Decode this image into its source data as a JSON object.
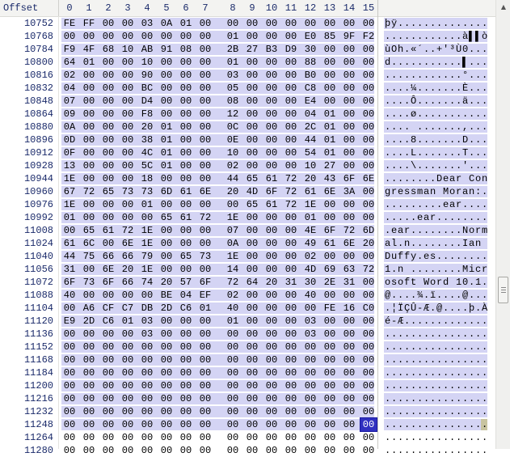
{
  "header": {
    "offset_label": "Offset",
    "columns": [
      "0",
      "1",
      "2",
      "3",
      "4",
      "5",
      "6",
      "7",
      "8",
      "9",
      "10",
      "11",
      "12",
      "13",
      "14",
      "15"
    ]
  },
  "rows": [
    {
      "offset": "10752",
      "hex": [
        "FE",
        "FF",
        "00",
        "00",
        "03",
        "0A",
        "01",
        "00",
        "00",
        "00",
        "00",
        "00",
        "00",
        "00",
        "00",
        "00"
      ],
      "ascii": "þÿ.............."
    },
    {
      "offset": "10768",
      "hex": [
        "00",
        "00",
        "00",
        "00",
        "00",
        "00",
        "00",
        "00",
        "01",
        "00",
        "00",
        "00",
        "E0",
        "85",
        "9F",
        "F2"
      ],
      "ascii": "............à▌▌ò"
    },
    {
      "offset": "10784",
      "hex": [
        "F9",
        "4F",
        "68",
        "10",
        "AB",
        "91",
        "08",
        "00",
        "2B",
        "27",
        "B3",
        "D9",
        "30",
        "00",
        "00",
        "00"
      ],
      "ascii": "ùOh.«´..+'³Ù0..."
    },
    {
      "offset": "10800",
      "hex": [
        "64",
        "01",
        "00",
        "00",
        "10",
        "00",
        "00",
        "00",
        "01",
        "00",
        "00",
        "00",
        "88",
        "00",
        "00",
        "00"
      ],
      "ascii": "d...........▌..."
    },
    {
      "offset": "10816",
      "hex": [
        "02",
        "00",
        "00",
        "00",
        "90",
        "00",
        "00",
        "00",
        "03",
        "00",
        "00",
        "00",
        "B0",
        "00",
        "00",
        "00"
      ],
      "ascii": "............°..."
    },
    {
      "offset": "10832",
      "hex": [
        "04",
        "00",
        "00",
        "00",
        "BC",
        "00",
        "00",
        "00",
        "05",
        "00",
        "00",
        "00",
        "C8",
        "00",
        "00",
        "00"
      ],
      "ascii": "....¼.......È..."
    },
    {
      "offset": "10848",
      "hex": [
        "07",
        "00",
        "00",
        "00",
        "D4",
        "00",
        "00",
        "00",
        "08",
        "00",
        "00",
        "00",
        "E4",
        "00",
        "00",
        "00"
      ],
      "ascii": "....Ô.......ä..."
    },
    {
      "offset": "10864",
      "hex": [
        "09",
        "00",
        "00",
        "00",
        "F8",
        "00",
        "00",
        "00",
        "12",
        "00",
        "00",
        "00",
        "04",
        "01",
        "00",
        "00"
      ],
      "ascii": "....ø..........."
    },
    {
      "offset": "10880",
      "hex": [
        "0A",
        "00",
        "00",
        "00",
        "20",
        "01",
        "00",
        "00",
        "0C",
        "00",
        "00",
        "00",
        "2C",
        "01",
        "00",
        "00"
      ],
      "ascii": ".... .......,..."
    },
    {
      "offset": "10896",
      "hex": [
        "0D",
        "00",
        "00",
        "00",
        "38",
        "01",
        "00",
        "00",
        "0E",
        "00",
        "00",
        "00",
        "44",
        "01",
        "00",
        "00"
      ],
      "ascii": "....8.......D..."
    },
    {
      "offset": "10912",
      "hex": [
        "0F",
        "00",
        "00",
        "00",
        "4C",
        "01",
        "00",
        "00",
        "10",
        "00",
        "00",
        "00",
        "54",
        "01",
        "00",
        "00"
      ],
      "ascii": "....L.......T..."
    },
    {
      "offset": "10928",
      "hex": [
        "13",
        "00",
        "00",
        "00",
        "5C",
        "01",
        "00",
        "00",
        "02",
        "00",
        "00",
        "00",
        "10",
        "27",
        "00",
        "00"
      ],
      "ascii": "....\\.......'..."
    },
    {
      "offset": "10944",
      "hex": [
        "1E",
        "00",
        "00",
        "00",
        "18",
        "00",
        "00",
        "00",
        "44",
        "65",
        "61",
        "72",
        "20",
        "43",
        "6F",
        "6E"
      ],
      "ascii": "........Dear Con"
    },
    {
      "offset": "10960",
      "hex": [
        "67",
        "72",
        "65",
        "73",
        "73",
        "6D",
        "61",
        "6E",
        "20",
        "4D",
        "6F",
        "72",
        "61",
        "6E",
        "3A",
        "00"
      ],
      "ascii": "gressman Moran:."
    },
    {
      "offset": "10976",
      "hex": [
        "1E",
        "00",
        "00",
        "00",
        "01",
        "00",
        "00",
        "00",
        "00",
        "65",
        "61",
        "72",
        "1E",
        "00",
        "00",
        "00"
      ],
      "ascii": ".........ear...."
    },
    {
      "offset": "10992",
      "hex": [
        "01",
        "00",
        "00",
        "00",
        "00",
        "65",
        "61",
        "72",
        "1E",
        "00",
        "00",
        "00",
        "01",
        "00",
        "00",
        "00"
      ],
      "ascii": ".....ear........"
    },
    {
      "offset": "11008",
      "hex": [
        "00",
        "65",
        "61",
        "72",
        "1E",
        "00",
        "00",
        "00",
        "07",
        "00",
        "00",
        "00",
        "4E",
        "6F",
        "72",
        "6D"
      ],
      "ascii": ".ear........Norm"
    },
    {
      "offset": "11024",
      "hex": [
        "61",
        "6C",
        "00",
        "6E",
        "1E",
        "00",
        "00",
        "00",
        "0A",
        "00",
        "00",
        "00",
        "49",
        "61",
        "6E",
        "20"
      ],
      "ascii": "al.n........Ian "
    },
    {
      "offset": "11040",
      "hex": [
        "44",
        "75",
        "66",
        "66",
        "79",
        "00",
        "65",
        "73",
        "1E",
        "00",
        "00",
        "00",
        "02",
        "00",
        "00",
        "00"
      ],
      "ascii": "Duffy.es........"
    },
    {
      "offset": "11056",
      "hex": [
        "31",
        "00",
        "6E",
        "20",
        "1E",
        "00",
        "00",
        "00",
        "14",
        "00",
        "00",
        "00",
        "4D",
        "69",
        "63",
        "72"
      ],
      "ascii": "1.n ........Micr"
    },
    {
      "offset": "11072",
      "hex": [
        "6F",
        "73",
        "6F",
        "66",
        "74",
        "20",
        "57",
        "6F",
        "72",
        "64",
        "20",
        "31",
        "30",
        "2E",
        "31",
        "00"
      ],
      "ascii": "osoft Word 10.1."
    },
    {
      "offset": "11088",
      "hex": [
        "40",
        "00",
        "00",
        "00",
        "00",
        "BE",
        "04",
        "EF",
        "02",
        "00",
        "00",
        "00",
        "40",
        "00",
        "00",
        "00"
      ],
      "ascii": "@....¾.ï....@..."
    },
    {
      "offset": "11104",
      "hex": [
        "00",
        "A6",
        "CF",
        "C7",
        "DB",
        "2D",
        "C6",
        "01",
        "40",
        "00",
        "00",
        "00",
        "00",
        "FE",
        "16",
        "C0"
      ],
      "ascii": ".¦ÏÇÛ-Æ.@....þ.À"
    },
    {
      "offset": "11120",
      "hex": [
        "E9",
        "2D",
        "C6",
        "01",
        "03",
        "00",
        "00",
        "00",
        "01",
        "00",
        "00",
        "00",
        "03",
        "00",
        "00",
        "00"
      ],
      "ascii": "é-Æ............."
    },
    {
      "offset": "11136",
      "hex": [
        "00",
        "00",
        "00",
        "00",
        "03",
        "00",
        "00",
        "00",
        "00",
        "00",
        "00",
        "00",
        "03",
        "00",
        "00",
        "00"
      ],
      "ascii": "................"
    },
    {
      "offset": "11152",
      "hex": [
        "00",
        "00",
        "00",
        "00",
        "00",
        "00",
        "00",
        "00",
        "00",
        "00",
        "00",
        "00",
        "00",
        "00",
        "00",
        "00"
      ],
      "ascii": "................"
    },
    {
      "offset": "11168",
      "hex": [
        "00",
        "00",
        "00",
        "00",
        "00",
        "00",
        "00",
        "00",
        "00",
        "00",
        "00",
        "00",
        "00",
        "00",
        "00",
        "00"
      ],
      "ascii": "................"
    },
    {
      "offset": "11184",
      "hex": [
        "00",
        "00",
        "00",
        "00",
        "00",
        "00",
        "00",
        "00",
        "00",
        "00",
        "00",
        "00",
        "00",
        "00",
        "00",
        "00"
      ],
      "ascii": "................"
    },
    {
      "offset": "11200",
      "hex": [
        "00",
        "00",
        "00",
        "00",
        "00",
        "00",
        "00",
        "00",
        "00",
        "00",
        "00",
        "00",
        "00",
        "00",
        "00",
        "00"
      ],
      "ascii": "................"
    },
    {
      "offset": "11216",
      "hex": [
        "00",
        "00",
        "00",
        "00",
        "00",
        "00",
        "00",
        "00",
        "00",
        "00",
        "00",
        "00",
        "00",
        "00",
        "00",
        "00"
      ],
      "ascii": "................"
    },
    {
      "offset": "11232",
      "hex": [
        "00",
        "00",
        "00",
        "00",
        "00",
        "00",
        "00",
        "00",
        "00",
        "00",
        "00",
        "00",
        "00",
        "00",
        "00",
        "00"
      ],
      "ascii": "................"
    },
    {
      "offset": "11248",
      "hex": [
        "00",
        "00",
        "00",
        "00",
        "00",
        "00",
        "00",
        "00",
        "00",
        "00",
        "00",
        "00",
        "00",
        "00",
        "00",
        "00"
      ],
      "ascii": "................"
    },
    {
      "offset": "11264",
      "hex": [
        "00",
        "00",
        "00",
        "00",
        "00",
        "00",
        "00",
        "00",
        "00",
        "00",
        "00",
        "00",
        "00",
        "00",
        "00",
        "00"
      ],
      "ascii": "................"
    },
    {
      "offset": "11280",
      "hex": [
        "00",
        "00",
        "00",
        "00",
        "00",
        "00",
        "00",
        "00",
        "00",
        "00",
        "00",
        "00",
        "00",
        "00",
        "00",
        "00"
      ],
      "ascii": "................"
    }
  ],
  "selection": {
    "start_offset": "10752",
    "end_offset": "11263",
    "cursor_offset": "11263",
    "highlight_color": "#d4d4f4",
    "cursor_color": "#3030c0"
  },
  "scrollbar": {
    "up_arrow": "▲",
    "thumb_position_pct": 62
  }
}
